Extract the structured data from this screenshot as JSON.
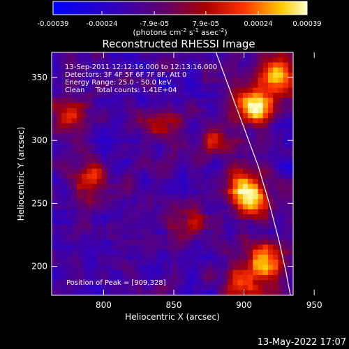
{
  "chart_data": {
    "type": "heatmap",
    "title": "Reconstructed RHESSI Image",
    "xlabel": "Heliocentric X (arcsec)",
    "ylabel": "Heliocentric Y (arcsec)",
    "xlim": [
      763,
      935
    ],
    "ylim": [
      177,
      370
    ],
    "x_ticks": [
      800,
      850,
      900,
      950
    ],
    "y_ticks": [
      200,
      250,
      300,
      350
    ],
    "colorbar": {
      "range": [
        -0.00039,
        0.00039
      ],
      "tick_values": [
        -0.00039,
        -0.00024,
        -7.9e-05,
        7.9e-05,
        0.00024,
        0.00039
      ],
      "tick_labels": [
        "-0.00039",
        "-0.00024",
        "-7.9e-05",
        "7.9e-05",
        "0.00024",
        "0.00039"
      ],
      "unit_label": "(photons cm",
      "unit_sup1": "-2",
      "unit_mid": " s",
      "unit_sup2": "-1",
      "unit_end": " asec",
      "unit_sup3": "-2",
      "unit_close": ")"
    },
    "annotations": [
      "13-Sep-2011 12:12:16.000 to 12:13:16.000",
      "Detectors: 3F 4F 5F 6F 7F 8F, Att 0",
      "Energy Range: 25.0 - 50.0 keV",
      "Clean     Total counts: 1.41E+04"
    ],
    "peak_label": "Position of Peak = [909,328]",
    "peak": [
      909,
      328
    ],
    "bright_sources": [
      {
        "x": 909,
        "y": 328,
        "v": 1.0
      },
      {
        "x": 925,
        "y": 352,
        "v": 0.85
      },
      {
        "x": 900,
        "y": 265,
        "v": 0.7
      },
      {
        "x": 905,
        "y": 250,
        "v": 0.65
      },
      {
        "x": 915,
        "y": 205,
        "v": 0.75
      },
      {
        "x": 900,
        "y": 185,
        "v": 0.6
      },
      {
        "x": 790,
        "y": 270,
        "v": 0.5
      },
      {
        "x": 860,
        "y": 235,
        "v": 0.45
      },
      {
        "x": 775,
        "y": 320,
        "v": 0.45
      },
      {
        "x": 840,
        "y": 310,
        "v": 0.35
      },
      {
        "x": 880,
        "y": 300,
        "v": 0.4
      }
    ],
    "limb": [
      [
        880,
        370
      ],
      [
        890,
        340
      ],
      [
        900,
        310
      ],
      [
        910,
        280
      ],
      [
        918,
        250
      ],
      [
        925,
        220
      ],
      [
        930,
        195
      ],
      [
        933,
        177
      ]
    ]
  },
  "footer_timestamp": "13-May-2022 17:07"
}
